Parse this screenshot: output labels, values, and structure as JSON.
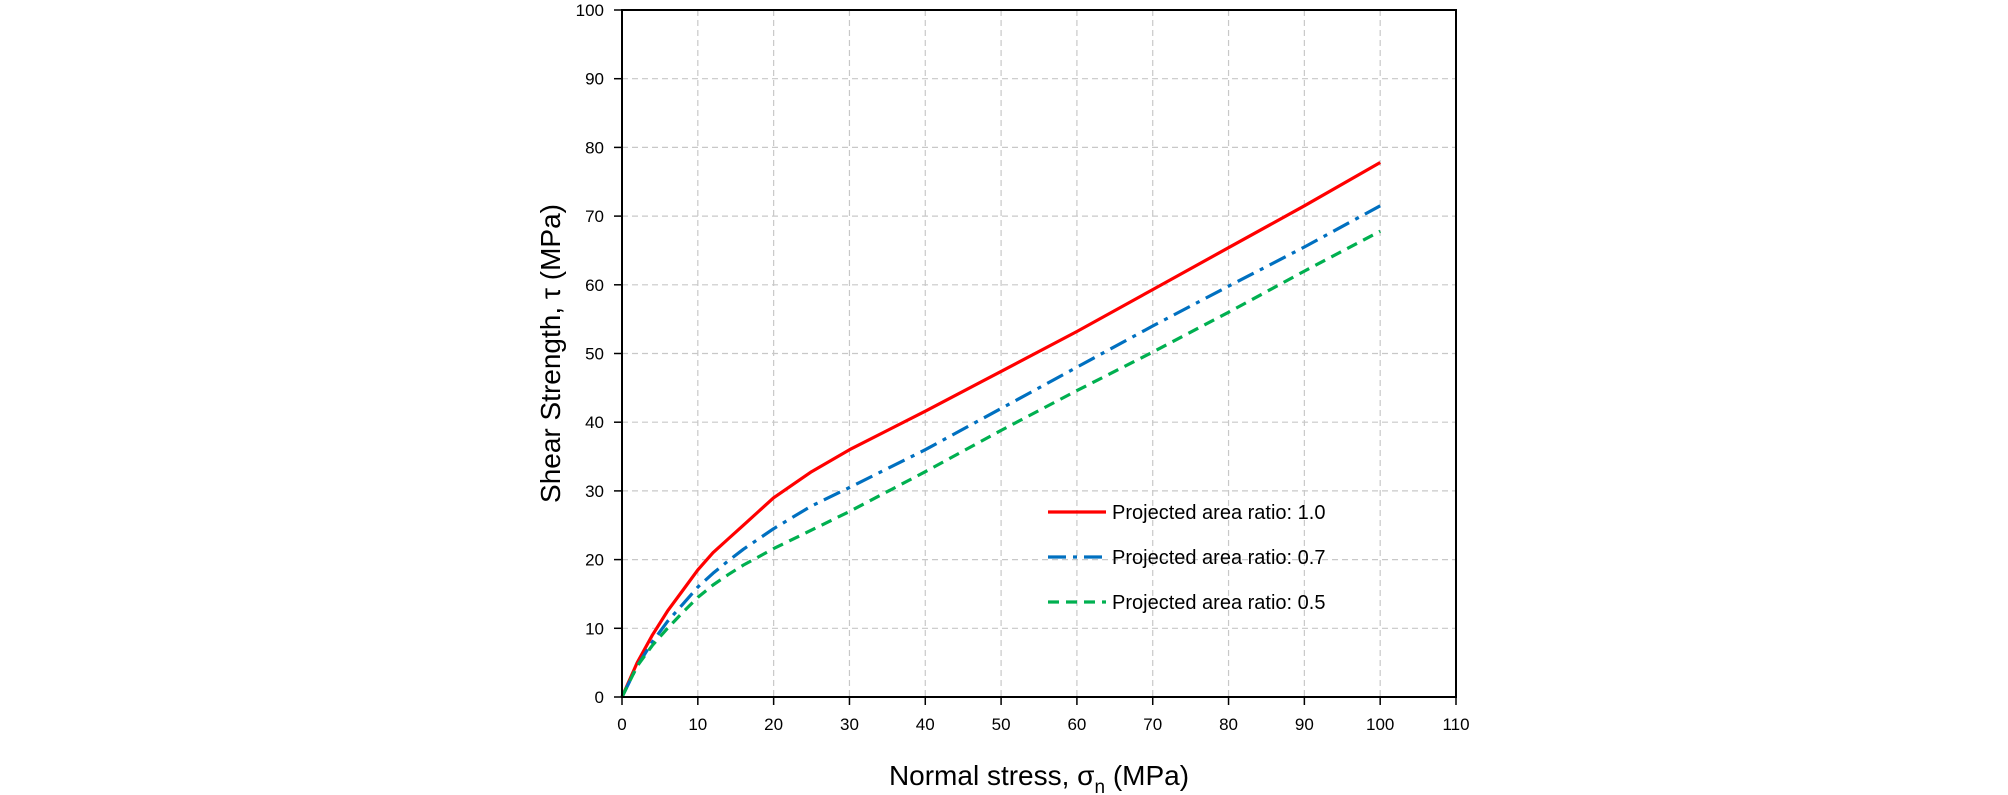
{
  "chart_data": {
    "type": "line",
    "title": "",
    "xlabel": "Normal stress, σ",
    "xlabel_subscript": "n",
    "xlabel_unit": " (MPa)",
    "ylabel": "Shear Strength, τ (MPa)",
    "xlim": [
      0,
      110
    ],
    "ylim": [
      0,
      100
    ],
    "x_ticks": [
      "0",
      "10",
      "20",
      "30",
      "40",
      "50",
      "60",
      "70",
      "80",
      "90",
      "100",
      "110"
    ],
    "y_ticks": [
      "0",
      "10",
      "20",
      "30",
      "40",
      "50",
      "60",
      "70",
      "80",
      "90",
      "100"
    ],
    "grid": true,
    "legend_position": "center-right",
    "series": [
      {
        "name": "Projected area ratio: 1.0",
        "color": "#ff0000",
        "dash": "solid",
        "points": [
          [
            0,
            0
          ],
          [
            2,
            5
          ],
          [
            4,
            9
          ],
          [
            6,
            12.5
          ],
          [
            8,
            15.5
          ],
          [
            10,
            18.5
          ],
          [
            12,
            21
          ],
          [
            14,
            23
          ],
          [
            16,
            25
          ],
          [
            18,
            27
          ],
          [
            20,
            29
          ],
          [
            25,
            32.8
          ],
          [
            30,
            36
          ],
          [
            40,
            41.6
          ],
          [
            50,
            47.4
          ],
          [
            60,
            53.2
          ],
          [
            70,
            59.3
          ],
          [
            80,
            65.4
          ],
          [
            90,
            71.5
          ],
          [
            100,
            77.8
          ]
        ]
      },
      {
        "name": "Projected area ratio: 0.7",
        "color": "#0070c0",
        "dash": "dashdot",
        "points": [
          [
            0,
            0
          ],
          [
            2,
            4.5
          ],
          [
            4,
            8
          ],
          [
            6,
            11
          ],
          [
            8,
            13.5
          ],
          [
            10,
            16
          ],
          [
            12,
            18
          ],
          [
            14,
            19.8
          ],
          [
            16,
            21.5
          ],
          [
            18,
            23
          ],
          [
            20,
            24.5
          ],
          [
            25,
            27.8
          ],
          [
            30,
            30.5
          ],
          [
            40,
            36
          ],
          [
            50,
            42
          ],
          [
            60,
            48
          ],
          [
            70,
            54
          ],
          [
            80,
            59.8
          ],
          [
            90,
            65.5
          ],
          [
            100,
            71.5
          ]
        ]
      },
      {
        "name": "Projected area ratio: 0.5",
        "color": "#00b050",
        "dash": "dash",
        "points": [
          [
            0,
            0
          ],
          [
            2,
            4.5
          ],
          [
            4,
            7.5
          ],
          [
            6,
            10
          ],
          [
            8,
            12.3
          ],
          [
            10,
            14.5
          ],
          [
            12,
            16.3
          ],
          [
            14,
            17.8
          ],
          [
            16,
            19.2
          ],
          [
            18,
            20.4
          ],
          [
            20,
            21.6
          ],
          [
            25,
            24.3
          ],
          [
            30,
            27
          ],
          [
            40,
            32.8
          ],
          [
            50,
            38.8
          ],
          [
            60,
            44.6
          ],
          [
            70,
            50.2
          ],
          [
            80,
            56
          ],
          [
            90,
            62
          ],
          [
            100,
            67.8
          ]
        ]
      }
    ]
  }
}
